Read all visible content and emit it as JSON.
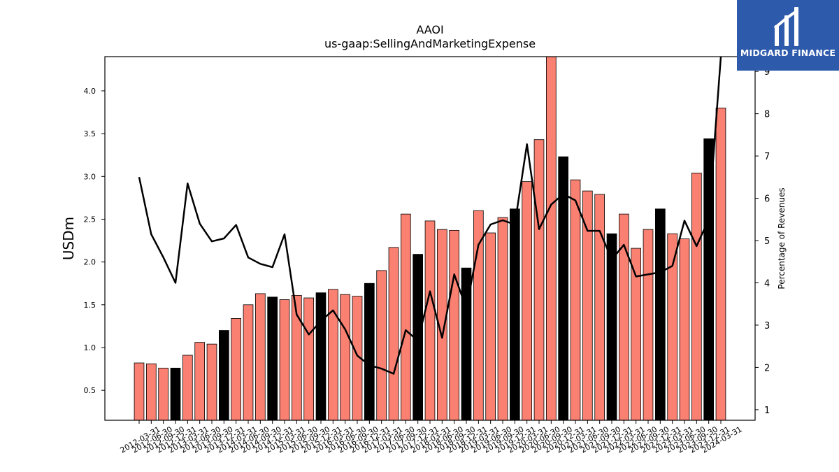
{
  "logo": {
    "text": "MIDGARD FINANCE",
    "background": "#2e5aac"
  },
  "chart_data": {
    "type": "bar",
    "title": "AAOI",
    "subtitle": "us-gaap:SellingAndMarketingExpense",
    "ylabel": "USDm",
    "y2label": "Percentage of Revenues",
    "ylim": [
      0.15,
      4.4
    ],
    "y2lim": [
      0.75,
      9.35
    ],
    "yticks": [
      "0.5",
      "1.0",
      "1.5",
      "2.0",
      "2.5",
      "3.0",
      "3.5",
      "4.0"
    ],
    "y2ticks": [
      "1",
      "2",
      "3",
      "4",
      "5",
      "6",
      "7",
      "8",
      "9"
    ],
    "colors": {
      "bar": "#fa8072",
      "bar_q4": "#000000",
      "line": "#000000"
    },
    "categories": [
      "2012-03-31",
      "2012-06-30",
      "2012-09-30",
      "2012-12-31",
      "2013-03-31",
      "2013-06-30",
      "2013-09-30",
      "2013-12-31",
      "2014-03-31",
      "2014-06-30",
      "2014-09-30",
      "2014-12-31",
      "2015-03-31",
      "2015-06-30",
      "2015-09-30",
      "2015-12-31",
      "2016-03-31",
      "2016-06-30",
      "2016-09-30",
      "2016-12-31",
      "2017-03-31",
      "2017-06-30",
      "2017-09-30",
      "2017-12-31",
      "2018-03-31",
      "2018-06-30",
      "2018-09-30",
      "2018-12-31",
      "2019-03-31",
      "2019-06-30",
      "2019-09-30",
      "2019-12-31",
      "2020-03-31",
      "2020-06-30",
      "2020-09-30",
      "2020-12-31",
      "2021-03-31",
      "2021-06-30",
      "2021-09-30",
      "2021-12-31",
      "2022-03-31",
      "2022-06-30",
      "2022-09-30",
      "2022-12-31",
      "2023-03-31",
      "2023-06-30",
      "2023-09-30",
      "2023-12-31",
      "2024-03-31"
    ],
    "series": [
      {
        "type": "bar",
        "values": [
          0.82,
          0.81,
          0.76,
          0.76,
          0.91,
          1.06,
          1.04,
          1.2,
          1.34,
          1.5,
          1.63,
          1.59,
          1.56,
          1.61,
          1.58,
          1.64,
          1.68,
          1.62,
          1.6,
          1.75,
          1.9,
          2.17,
          2.56,
          2.09,
          2.48,
          2.38,
          2.37,
          1.93,
          2.6,
          2.34,
          2.52,
          2.62,
          2.94,
          3.43,
          4.4,
          3.23,
          2.96,
          2.83,
          2.79,
          2.33,
          2.56,
          2.16,
          2.38,
          2.62,
          2.33,
          2.27,
          3.04,
          3.44,
          3.8
        ]
      },
      {
        "type": "line",
        "values": [
          6.5,
          5.15,
          4.6,
          4.0,
          6.35,
          5.4,
          4.98,
          5.05,
          5.37,
          4.6,
          4.45,
          4.37,
          5.15,
          3.25,
          2.78,
          3.1,
          3.35,
          2.9,
          2.28,
          2.05,
          1.97,
          1.85,
          2.88,
          2.63,
          3.8,
          2.7,
          4.2,
          3.4,
          4.9,
          5.38,
          5.48,
          5.38,
          7.28,
          5.27,
          5.85,
          6.1,
          5.95,
          5.23,
          5.23,
          4.55,
          4.9,
          4.15,
          4.2,
          4.25,
          4.4,
          5.47,
          4.87,
          5.5,
          9.4
        ]
      }
    ]
  }
}
